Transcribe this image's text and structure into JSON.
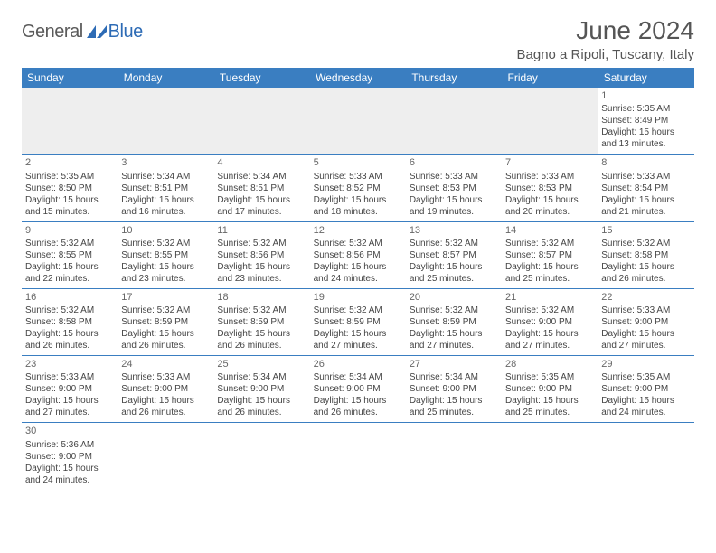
{
  "logo": {
    "general": "General",
    "blue": "Blue"
  },
  "title": "June 2024",
  "location": "Bagno a Ripoli, Tuscany, Italy",
  "colors": {
    "header_bg": "#3a7ec1",
    "header_fg": "#ffffff",
    "border": "#3a7ec1",
    "logo_gray": "#5a5a5a",
    "logo_blue": "#2d6bb5",
    "empty_bg": "#eeeeee",
    "text": "#444444"
  },
  "weekdays": [
    "Sunday",
    "Monday",
    "Tuesday",
    "Wednesday",
    "Thursday",
    "Friday",
    "Saturday"
  ],
  "weeks": [
    [
      null,
      null,
      null,
      null,
      null,
      null,
      {
        "day": "1",
        "sunrise": "5:35 AM",
        "sunset": "8:49 PM",
        "daylight": "15 hours and 13 minutes."
      }
    ],
    [
      {
        "day": "2",
        "sunrise": "5:35 AM",
        "sunset": "8:50 PM",
        "daylight": "15 hours and 15 minutes."
      },
      {
        "day": "3",
        "sunrise": "5:34 AM",
        "sunset": "8:51 PM",
        "daylight": "15 hours and 16 minutes."
      },
      {
        "day": "4",
        "sunrise": "5:34 AM",
        "sunset": "8:51 PM",
        "daylight": "15 hours and 17 minutes."
      },
      {
        "day": "5",
        "sunrise": "5:33 AM",
        "sunset": "8:52 PM",
        "daylight": "15 hours and 18 minutes."
      },
      {
        "day": "6",
        "sunrise": "5:33 AM",
        "sunset": "8:53 PM",
        "daylight": "15 hours and 19 minutes."
      },
      {
        "day": "7",
        "sunrise": "5:33 AM",
        "sunset": "8:53 PM",
        "daylight": "15 hours and 20 minutes."
      },
      {
        "day": "8",
        "sunrise": "5:33 AM",
        "sunset": "8:54 PM",
        "daylight": "15 hours and 21 minutes."
      }
    ],
    [
      {
        "day": "9",
        "sunrise": "5:32 AM",
        "sunset": "8:55 PM",
        "daylight": "15 hours and 22 minutes."
      },
      {
        "day": "10",
        "sunrise": "5:32 AM",
        "sunset": "8:55 PM",
        "daylight": "15 hours and 23 minutes."
      },
      {
        "day": "11",
        "sunrise": "5:32 AM",
        "sunset": "8:56 PM",
        "daylight": "15 hours and 23 minutes."
      },
      {
        "day": "12",
        "sunrise": "5:32 AM",
        "sunset": "8:56 PM",
        "daylight": "15 hours and 24 minutes."
      },
      {
        "day": "13",
        "sunrise": "5:32 AM",
        "sunset": "8:57 PM",
        "daylight": "15 hours and 25 minutes."
      },
      {
        "day": "14",
        "sunrise": "5:32 AM",
        "sunset": "8:57 PM",
        "daylight": "15 hours and 25 minutes."
      },
      {
        "day": "15",
        "sunrise": "5:32 AM",
        "sunset": "8:58 PM",
        "daylight": "15 hours and 26 minutes."
      }
    ],
    [
      {
        "day": "16",
        "sunrise": "5:32 AM",
        "sunset": "8:58 PM",
        "daylight": "15 hours and 26 minutes."
      },
      {
        "day": "17",
        "sunrise": "5:32 AM",
        "sunset": "8:59 PM",
        "daylight": "15 hours and 26 minutes."
      },
      {
        "day": "18",
        "sunrise": "5:32 AM",
        "sunset": "8:59 PM",
        "daylight": "15 hours and 26 minutes."
      },
      {
        "day": "19",
        "sunrise": "5:32 AM",
        "sunset": "8:59 PM",
        "daylight": "15 hours and 27 minutes."
      },
      {
        "day": "20",
        "sunrise": "5:32 AM",
        "sunset": "8:59 PM",
        "daylight": "15 hours and 27 minutes."
      },
      {
        "day": "21",
        "sunrise": "5:32 AM",
        "sunset": "9:00 PM",
        "daylight": "15 hours and 27 minutes."
      },
      {
        "day": "22",
        "sunrise": "5:33 AM",
        "sunset": "9:00 PM",
        "daylight": "15 hours and 27 minutes."
      }
    ],
    [
      {
        "day": "23",
        "sunrise": "5:33 AM",
        "sunset": "9:00 PM",
        "daylight": "15 hours and 27 minutes."
      },
      {
        "day": "24",
        "sunrise": "5:33 AM",
        "sunset": "9:00 PM",
        "daylight": "15 hours and 26 minutes."
      },
      {
        "day": "25",
        "sunrise": "5:34 AM",
        "sunset": "9:00 PM",
        "daylight": "15 hours and 26 minutes."
      },
      {
        "day": "26",
        "sunrise": "5:34 AM",
        "sunset": "9:00 PM",
        "daylight": "15 hours and 26 minutes."
      },
      {
        "day": "27",
        "sunrise": "5:34 AM",
        "sunset": "9:00 PM",
        "daylight": "15 hours and 25 minutes."
      },
      {
        "day": "28",
        "sunrise": "5:35 AM",
        "sunset": "9:00 PM",
        "daylight": "15 hours and 25 minutes."
      },
      {
        "day": "29",
        "sunrise": "5:35 AM",
        "sunset": "9:00 PM",
        "daylight": "15 hours and 24 minutes."
      }
    ],
    [
      {
        "day": "30",
        "sunrise": "5:36 AM",
        "sunset": "9:00 PM",
        "daylight": "15 hours and 24 minutes."
      },
      null,
      null,
      null,
      null,
      null,
      null
    ]
  ],
  "labels": {
    "sunrise_prefix": "Sunrise: ",
    "sunset_prefix": "Sunset: ",
    "daylight_prefix": "Daylight: "
  }
}
